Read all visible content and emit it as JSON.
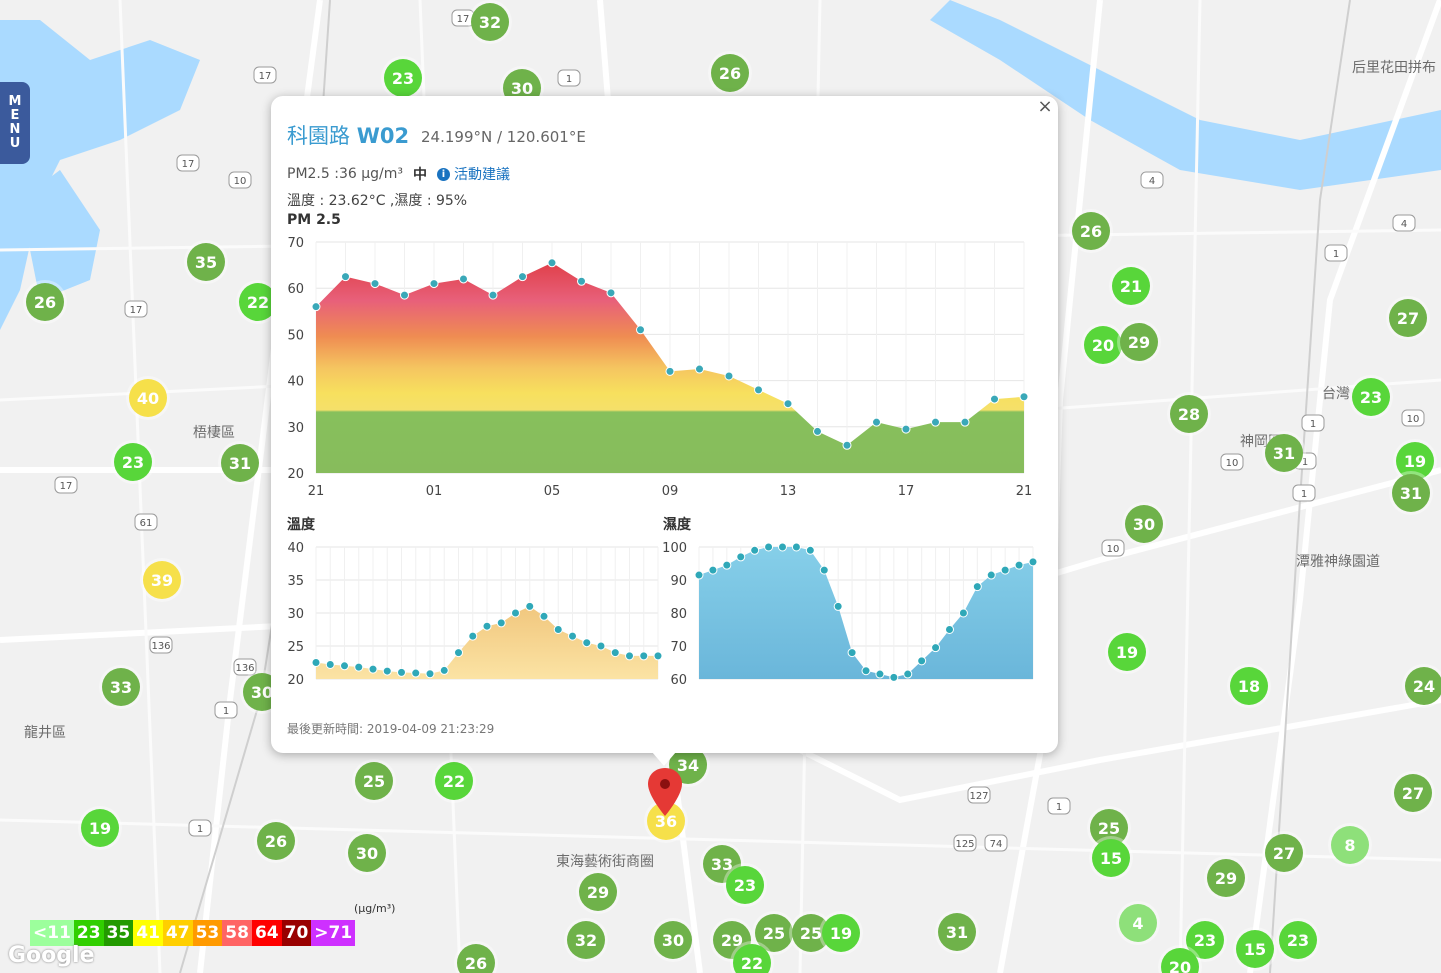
{
  "menu": {
    "letters": [
      "M",
      "E",
      "N",
      "U"
    ]
  },
  "map": {
    "place_labels": [
      {
        "text": "梧棲區"
      },
      {
        "text": "龍井區"
      },
      {
        "text": "神岡區"
      },
      {
        "text": "東海藝術街商圈"
      },
      {
        "text": "后里花田拼布"
      },
      {
        "text": "台灣 物館"
      },
      {
        "text": "潭雅神綠園道"
      }
    ],
    "road_shields": [
      "17",
      "10",
      "17",
      "17",
      "61",
      "136",
      "136",
      "1",
      "1",
      "125",
      "127",
      "74",
      "10",
      "10",
      "1",
      "4",
      "4",
      "1",
      "1",
      "1",
      "10",
      "1",
      "17",
      "17",
      "1"
    ],
    "markers": [
      {
        "value": "32",
        "color": "#6fb24a"
      },
      {
        "value": "23",
        "color": "#58d63a"
      },
      {
        "value": "30",
        "color": "#6fb24a"
      },
      {
        "value": "26",
        "color": "#6fb24a"
      },
      {
        "value": "35",
        "color": "#6fb24a"
      },
      {
        "value": "26",
        "color": "#6fb24a"
      },
      {
        "value": "22",
        "color": "#58d63a"
      },
      {
        "value": "40",
        "color": "#f6e04a"
      },
      {
        "value": "23",
        "color": "#58d63a"
      },
      {
        "value": "31",
        "color": "#6fb24a"
      },
      {
        "value": "39",
        "color": "#f6e04a"
      },
      {
        "value": "33",
        "color": "#6fb24a"
      },
      {
        "value": "30",
        "color": "#6fb24a"
      },
      {
        "value": "25",
        "color": "#6fb24a"
      },
      {
        "value": "22",
        "color": "#58d63a"
      },
      {
        "value": "19",
        "color": "#58d63a"
      },
      {
        "value": "26",
        "color": "#6fb24a"
      },
      {
        "value": "30",
        "color": "#6fb24a"
      },
      {
        "value": "34",
        "color": "#6fb24a"
      },
      {
        "value": "36",
        "color": "#f6e04a"
      },
      {
        "value": "33",
        "color": "#6fb24a"
      },
      {
        "value": "29",
        "color": "#6fb24a"
      },
      {
        "value": "23",
        "color": "#58d63a"
      },
      {
        "value": "32",
        "color": "#6fb24a"
      },
      {
        "value": "30",
        "color": "#6fb24a"
      },
      {
        "value": "29",
        "color": "#6fb24a"
      },
      {
        "value": "25",
        "color": "#6fb24a"
      },
      {
        "value": "25",
        "color": "#6fb24a"
      },
      {
        "value": "19",
        "color": "#58d63a"
      },
      {
        "value": "22",
        "color": "#58d63a"
      },
      {
        "value": "26",
        "color": "#6fb24a"
      },
      {
        "value": "31",
        "color": "#6fb24a"
      },
      {
        "value": "26",
        "color": "#6fb24a"
      },
      {
        "value": "21",
        "color": "#58d63a"
      },
      {
        "value": "20",
        "color": "#58d63a"
      },
      {
        "value": "29",
        "color": "#6fb24a"
      },
      {
        "value": "27",
        "color": "#6fb24a"
      },
      {
        "value": "28",
        "color": "#6fb24a"
      },
      {
        "value": "23",
        "color": "#58d63a"
      },
      {
        "value": "31",
        "color": "#6fb24a"
      },
      {
        "value": "19",
        "color": "#58d63a"
      },
      {
        "value": "31",
        "color": "#6fb24a"
      },
      {
        "value": "30",
        "color": "#6fb24a"
      },
      {
        "value": "19",
        "color": "#58d63a"
      },
      {
        "value": "18",
        "color": "#58d63a"
      },
      {
        "value": "24",
        "color": "#6fb24a"
      },
      {
        "value": "27",
        "color": "#6fb24a"
      },
      {
        "value": "25",
        "color": "#6fb24a"
      },
      {
        "value": "15",
        "color": "#58d63a"
      },
      {
        "value": "27",
        "color": "#6fb24a"
      },
      {
        "value": "8",
        "color": "#8ee07a"
      },
      {
        "value": "29",
        "color": "#6fb24a"
      },
      {
        "value": "4",
        "color": "#8ee07a"
      },
      {
        "value": "23",
        "color": "#58d63a"
      },
      {
        "value": "15",
        "color": "#58d63a"
      },
      {
        "value": "23",
        "color": "#58d63a"
      },
      {
        "value": "20",
        "color": "#58d63a"
      },
      {
        "value": "26",
        "color": "#6fb24a"
      }
    ]
  },
  "popup": {
    "station_name": "科園路",
    "station_code": "W02",
    "coords": "24.199°N / 120.601°E",
    "pm_text": "PM2.5 :36 μg/m³",
    "pm_level": "中",
    "advice_link": "活動建議",
    "weather_text": "溫度 : 23.62°C ,濕度 : 95%",
    "updated": "最後更新時間: 2019-04-09 21:23:29",
    "close_label": "×"
  },
  "chart_data": [
    {
      "type": "area",
      "title": "PM 2.5",
      "xlabel": "",
      "ylabel": "",
      "x_ticks": [
        "21",
        "01",
        "05",
        "09",
        "13",
        "17",
        "21"
      ],
      "ylim": [
        20,
        70
      ],
      "y_ticks": [
        20,
        30,
        40,
        50,
        60,
        70
      ],
      "values": [
        56,
        62.5,
        61,
        58.5,
        61,
        62,
        58.5,
        62.5,
        65.5,
        61.5,
        59,
        51,
        42,
        42.5,
        41,
        38,
        35,
        29,
        26,
        31,
        29.5,
        31,
        31,
        36,
        36.5
      ],
      "grid": true
    },
    {
      "type": "area",
      "title": "溫度",
      "xlabel": "",
      "ylabel": "",
      "ylim": [
        20,
        40
      ],
      "y_ticks": [
        20,
        25,
        30,
        35,
        40
      ],
      "values": [
        22.5,
        22.2,
        22,
        21.8,
        21.5,
        21.2,
        21,
        20.9,
        20.8,
        21.3,
        24,
        26.5,
        28,
        28.5,
        30,
        31,
        29.5,
        27.5,
        26.5,
        25.5,
        25,
        24,
        23.5,
        23.5,
        23.5
      ],
      "grid": true
    },
    {
      "type": "area",
      "title": "濕度",
      "xlabel": "",
      "ylabel": "",
      "ylim": [
        60,
        100
      ],
      "y_ticks": [
        60,
        70,
        80,
        90,
        100
      ],
      "values": [
        91.5,
        93,
        94.5,
        97,
        99,
        100,
        100,
        100,
        99,
        93,
        82,
        68,
        62.5,
        61.5,
        60.5,
        61.5,
        65.5,
        69.5,
        75,
        80,
        88,
        91.5,
        93,
        94.5,
        95.5
      ],
      "grid": true
    }
  ],
  "legend": {
    "unit": "(μg/m³)",
    "cells": [
      {
        "label": "<11",
        "color": "#9cff9c"
      },
      {
        "label": "23",
        "color": "#31cf00"
      },
      {
        "label": "35",
        "color": "#239a00"
      },
      {
        "label": "41",
        "color": "#ffff00"
      },
      {
        "label": "47",
        "color": "#ffcf00"
      },
      {
        "label": "53",
        "color": "#ff9a00"
      },
      {
        "label": "58",
        "color": "#ff6464"
      },
      {
        "label": "64",
        "color": "#ff0000"
      },
      {
        "label": "70",
        "color": "#990000"
      },
      {
        "label": ">71",
        "color": "#ce30ff"
      }
    ]
  },
  "google_label": "Google"
}
